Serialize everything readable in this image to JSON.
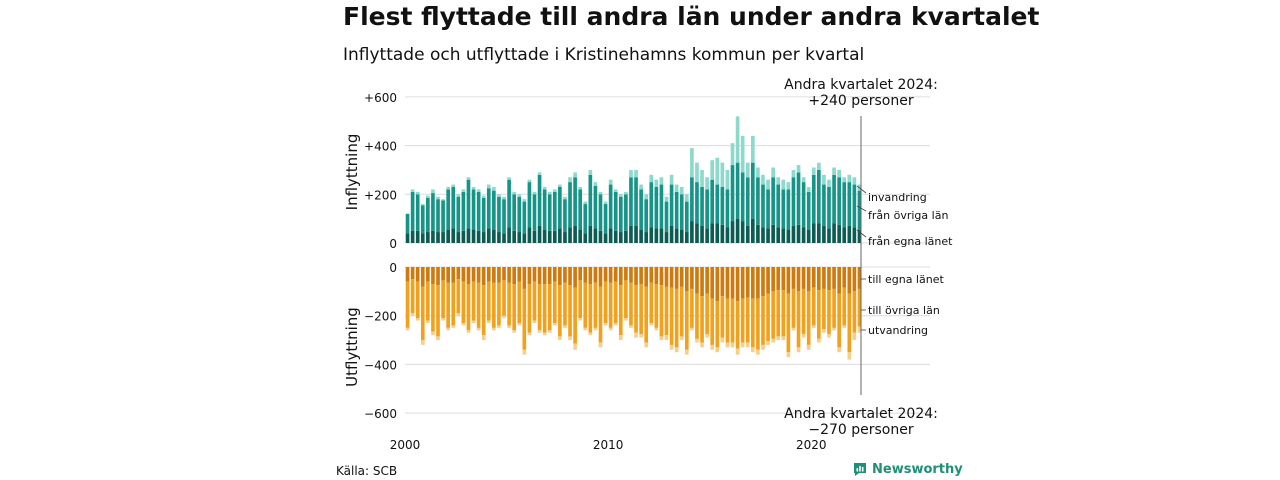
{
  "title": "Flest flyttade till andra län under andra kvartalet",
  "subtitle": "Inflyttade och utflyttade i Kristinehamns kommun per kvartal",
  "source": "Källa: SCB",
  "brand": "Newsworthy",
  "chart_data": {
    "type": "bar",
    "stacked": true,
    "x_ticks": [
      "2000",
      "2010",
      "2020"
    ],
    "inflow": {
      "ylabel": "Inflyttning",
      "y_ticks": [
        "0",
        "+200",
        "+400",
        "+600"
      ],
      "ylim": [
        0,
        600
      ],
      "series_labels": [
        "invandring",
        "från övriga län",
        "från egna länet"
      ],
      "colors": [
        "#8ed8cc",
        "#159487",
        "#0b5c53"
      ],
      "callout": [
        "Andra kvartalet 2024:",
        "+240 personer"
      ]
    },
    "outflow": {
      "ylabel": "Utflyttning",
      "y_ticks": [
        "0",
        "−200",
        "−400",
        "−600"
      ],
      "ylim": [
        -600,
        0
      ],
      "series_labels": [
        "till egna länet",
        "till övriga län",
        "utvandring"
      ],
      "colors": [
        "#cf7a0f",
        "#f2a11c",
        "#f9cf87"
      ],
      "callout": [
        "Andra kvartalet 2024:",
        "−270 personer"
      ]
    },
    "quarters_start": "2000 Q1",
    "inflow_total": [
      120,
      220,
      210,
      160,
      195,
      220,
      190,
      180,
      230,
      240,
      200,
      220,
      270,
      230,
      220,
      195,
      240,
      230,
      200,
      190,
      270,
      210,
      200,
      180,
      260,
      210,
      290,
      230,
      210,
      220,
      240,
      190,
      270,
      290,
      230,
      170,
      300,
      250,
      210,
      170,
      260,
      220,
      200,
      210,
      300,
      300,
      240,
      200,
      280,
      260,
      270,
      190,
      280,
      240,
      230,
      200,
      390,
      330,
      300,
      270,
      340,
      350,
      330,
      300,
      410,
      520,
      440,
      330,
      440,
      310,
      280,
      260,
      310,
      270,
      260,
      250,
      300,
      320,
      270,
      230,
      310,
      330,
      280,
      260,
      310,
      300,
      270,
      280,
      270,
      240
    ],
    "inflow_emig": [
      0,
      10,
      10,
      5,
      10,
      15,
      10,
      5,
      10,
      10,
      10,
      10,
      10,
      10,
      10,
      10,
      15,
      15,
      10,
      10,
      10,
      10,
      10,
      10,
      10,
      10,
      10,
      10,
      10,
      10,
      10,
      10,
      20,
      20,
      10,
      10,
      20,
      15,
      10,
      10,
      20,
      10,
      10,
      10,
      30,
      30,
      20,
      20,
      30,
      30,
      30,
      20,
      40,
      30,
      30,
      30,
      120,
      80,
      70,
      50,
      80,
      110,
      100,
      80,
      90,
      190,
      150,
      60,
      110,
      40,
      40,
      40,
      40,
      30,
      40,
      30,
      30,
      30,
      20,
      20,
      30,
      30,
      40,
      30,
      30,
      30,
      20,
      30,
      30,
      25
    ],
    "inflow_own": [
      40,
      50,
      50,
      40,
      45,
      50,
      45,
      45,
      55,
      60,
      45,
      50,
      60,
      55,
      50,
      45,
      60,
      55,
      45,
      40,
      65,
      50,
      45,
      40,
      65,
      50,
      70,
      55,
      50,
      50,
      60,
      45,
      65,
      70,
      55,
      40,
      70,
      60,
      50,
      40,
      60,
      50,
      45,
      50,
      70,
      70,
      55,
      45,
      65,
      60,
      60,
      45,
      70,
      60,
      55,
      45,
      90,
      80,
      70,
      60,
      80,
      80,
      75,
      65,
      90,
      100,
      90,
      70,
      100,
      75,
      65,
      60,
      75,
      65,
      60,
      55,
      70,
      75,
      65,
      55,
      80,
      80,
      70,
      60,
      80,
      75,
      65,
      70,
      65,
      55
    ],
    "outflow_total": [
      260,
      200,
      220,
      320,
      230,
      280,
      300,
      220,
      260,
      250,
      200,
      240,
      270,
      230,
      260,
      300,
      230,
      260,
      250,
      210,
      250,
      270,
      240,
      360,
      280,
      230,
      270,
      280,
      270,
      240,
      300,
      250,
      300,
      340,
      220,
      260,
      280,
      260,
      330,
      240,
      260,
      240,
      300,
      220,
      250,
      290,
      290,
      330,
      240,
      260,
      300,
      300,
      340,
      350,
      300,
      360,
      260,
      310,
      330,
      290,
      340,
      350,
      310,
      330,
      330,
      360,
      330,
      330,
      350,
      360,
      340,
      320,
      310,
      300,
      300,
      370,
      260,
      350,
      290,
      340,
      250,
      310,
      270,
      290,
      260,
      350,
      250,
      380,
      300,
      270
    ],
    "outflow_emig": [
      10,
      10,
      10,
      20,
      10,
      15,
      15,
      10,
      10,
      10,
      10,
      10,
      10,
      10,
      10,
      20,
      10,
      10,
      10,
      10,
      10,
      10,
      10,
      20,
      10,
      10,
      10,
      10,
      10,
      10,
      15,
      10,
      15,
      25,
      10,
      10,
      10,
      10,
      20,
      10,
      10,
      10,
      20,
      10,
      10,
      20,
      15,
      20,
      10,
      10,
      15,
      20,
      20,
      20,
      15,
      20,
      10,
      15,
      20,
      15,
      20,
      20,
      20,
      20,
      20,
      25,
      20,
      20,
      20,
      20,
      20,
      15,
      15,
      15,
      15,
      20,
      10,
      20,
      15,
      20,
      10,
      15,
      15,
      15,
      10,
      20,
      10,
      30,
      30,
      25
    ],
    "outflow_own": [
      60,
      50,
      60,
      80,
      60,
      70,
      75,
      55,
      65,
      65,
      50,
      60,
      70,
      60,
      65,
      75,
      60,
      65,
      65,
      55,
      65,
      70,
      60,
      90,
      70,
      60,
      70,
      70,
      70,
      60,
      75,
      65,
      75,
      85,
      55,
      65,
      70,
      65,
      80,
      60,
      65,
      60,
      75,
      55,
      65,
      75,
      70,
      80,
      65,
      70,
      75,
      80,
      85,
      90,
      80,
      100,
      90,
      110,
      120,
      110,
      130,
      140,
      120,
      130,
      130,
      140,
      130,
      125,
      130,
      130,
      120,
      110,
      100,
      95,
      95,
      110,
      90,
      100,
      90,
      100,
      85,
      95,
      90,
      95,
      90,
      110,
      85,
      110,
      100,
      90
    ]
  }
}
